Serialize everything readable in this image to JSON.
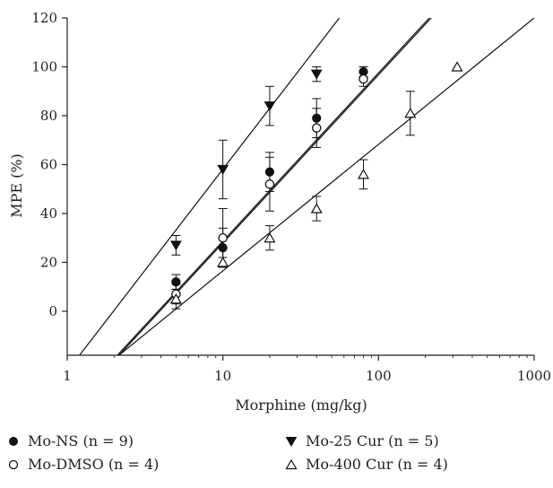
{
  "chart_data": {
    "type": "scatter",
    "title": "",
    "xlabel": "Morphine (mg/kg)",
    "ylabel": "MPE (%)",
    "x_scale": "log",
    "xlim": [
      1,
      1000
    ],
    "ylim": [
      -18,
      120
    ],
    "x_ticks": [
      "1",
      "10",
      "100",
      "1000"
    ],
    "y_ticks": [
      "0",
      "20",
      "40",
      "60",
      "80",
      "100",
      "120"
    ],
    "grid": false,
    "legend_position": "bottom",
    "series": [
      {
        "name": "Mo-NS",
        "n_label": "(n = 9)",
        "marker": "filled-circle",
        "x": [
          5,
          10,
          20,
          40,
          80
        ],
        "y": [
          12,
          26,
          57,
          79,
          98
        ],
        "err": [
          3,
          8,
          8,
          8,
          2
        ],
        "fit": {
          "x0": 2.1,
          "y0": -18,
          "x1": 212,
          "y1": 120
        }
      },
      {
        "name": "Mo-DMSO",
        "n_label": "(n = 4)",
        "marker": "open-circle",
        "x": [
          5,
          10,
          20,
          40,
          80
        ],
        "y": [
          7,
          30,
          52,
          75,
          95
        ],
        "err": [
          4,
          12,
          11,
          8,
          3
        ],
        "fit": {
          "x0": 2.15,
          "y0": -18,
          "x1": 218,
          "y1": 120
        }
      },
      {
        "name": "Mo-25 Cur",
        "n_label": "(n = 5)",
        "marker": "filled-triangle-down",
        "x": [
          5,
          10,
          20,
          40
        ],
        "y": [
          27,
          58,
          84,
          97
        ],
        "err": [
          4,
          12,
          8,
          3
        ],
        "fit": {
          "x0": 1.2,
          "y0": -18,
          "x1": 56,
          "y1": 120
        }
      },
      {
        "name": "Mo-400 Cur",
        "n_label": "(n = 4)",
        "marker": "open-triangle-up",
        "x": [
          5,
          10,
          20,
          40,
          80,
          160,
          320
        ],
        "y": [
          5,
          20,
          30,
          42,
          56,
          81,
          100
        ],
        "err": [
          4,
          2,
          5,
          5,
          6,
          9,
          0
        ],
        "fit": {
          "x0": 2.15,
          "y0": -18,
          "x1": 1000,
          "y1": 120
        }
      }
    ]
  },
  "legend": {
    "items": [
      {
        "label": "Mo-NS",
        "n": "(n = 9)",
        "marker": "filled-circle"
      },
      {
        "label": "Mo-DMSO",
        "n": "(n = 4)",
        "marker": "open-circle"
      },
      {
        "label": "Mo-25 Cur",
        "n": "(n = 5)",
        "marker": "filled-triangle-down"
      },
      {
        "label": "Mo-400 Cur",
        "n": "(n = 4)",
        "marker": "open-triangle-up"
      }
    ]
  }
}
